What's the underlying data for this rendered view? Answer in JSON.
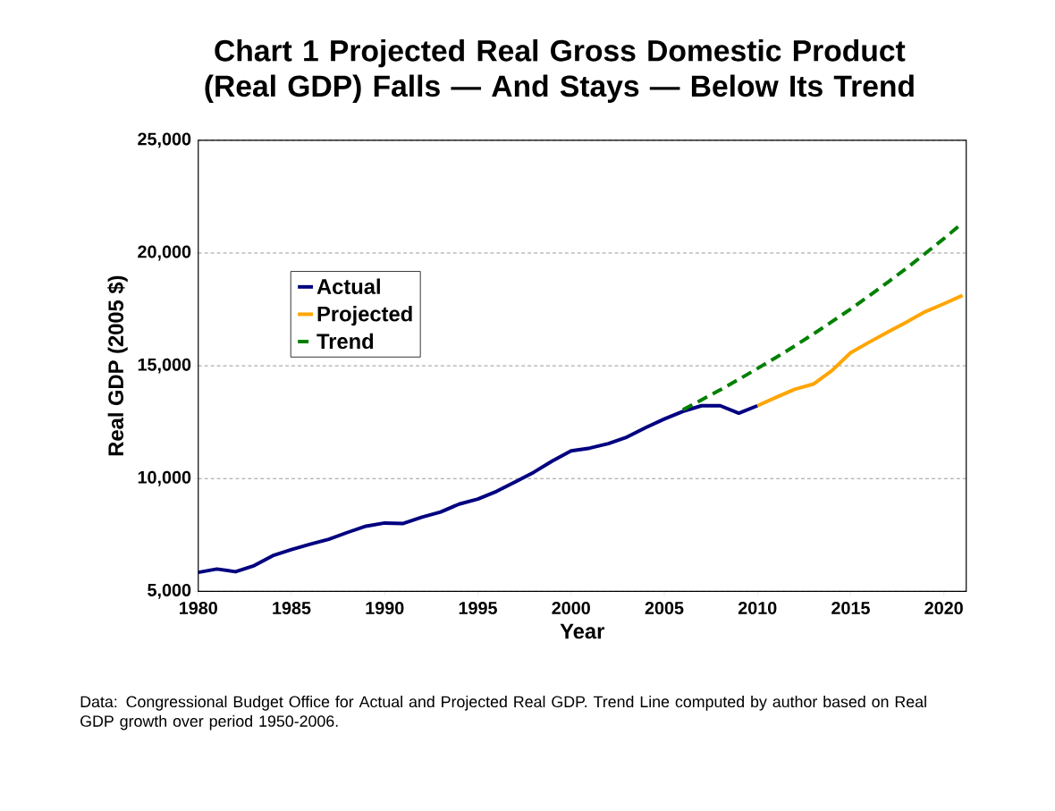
{
  "chart_data": {
    "type": "line",
    "title": "Chart 1     Projected Real Gross Domestic Product (Real GDP) Falls — And Stays — Below Its Trend",
    "xlabel": "Year",
    "ylabel": "Real GDP (2005 $)",
    "annotations": [
      "Data: Congressional Budget Office for Actual and Projected Real GDP.  Trend Line computed by author based on Real GDP growth over period 1950-2006."
    ],
    "series": [
      {
        "name": "Actual",
        "color": "#000080",
        "x": [
          1980,
          1981,
          1982,
          1983,
          1984,
          1985,
          1986,
          1987,
          1988,
          1989,
          1990,
          1991,
          1992,
          1993,
          1994,
          1995,
          1996,
          1997,
          1998,
          1999,
          2000,
          2001,
          2002,
          2003,
          2004,
          2005,
          2006,
          2007,
          2008,
          2009,
          2010
        ],
        "values": [
          5840,
          5990,
          5870,
          6140,
          6580,
          6850,
          7090,
          7310,
          7610,
          7890,
          8030,
          8010,
          8290,
          8520,
          8870,
          9090,
          9430,
          9850,
          10280,
          10780,
          11230,
          11350,
          11550,
          11840,
          12260,
          12640,
          12980,
          13230,
          13230,
          12900,
          13230
        ]
      },
      {
        "name": "Projected",
        "color": "#FFA500",
        "x": [
          2010,
          2011,
          2012,
          2013,
          2014,
          2015,
          2016,
          2017,
          2018,
          2019,
          2020,
          2021
        ],
        "values": [
          13230,
          13600,
          13960,
          14190,
          14790,
          15580,
          16050,
          16500,
          16940,
          17400,
          17750,
          18120
        ]
      },
      {
        "name": "Trend",
        "color": "#008000",
        "line_style": "dashed",
        "x": [
          2006,
          2007,
          2008,
          2009,
          2010,
          2011,
          2012,
          2013,
          2014,
          2015,
          2016,
          2017,
          2018,
          2019,
          2020,
          2021
        ],
        "values": [
          13050,
          13490,
          13930,
          14400,
          14880,
          15370,
          15880,
          16410,
          16960,
          17520,
          18110,
          18710,
          19330,
          19980,
          20640,
          21330
        ]
      }
    ],
    "xlim": [
      1980,
      2021.2
    ],
    "ylim": [
      5000,
      25000
    ],
    "xticks": [
      1980,
      1985,
      1990,
      1995,
      2000,
      2005,
      2010,
      2015,
      2020
    ],
    "yticks": [
      {
        "value": 5000,
        "label": "5,000"
      },
      {
        "value": 10000,
        "label": "10,000"
      },
      {
        "value": 15000,
        "label": "15,000"
      },
      {
        "value": 20000,
        "label": "20,000"
      },
      {
        "value": 25000,
        "label": "25,000"
      }
    ],
    "grid": "y",
    "legend": "top left",
    "line_style": "solid",
    "marker": "none"
  }
}
